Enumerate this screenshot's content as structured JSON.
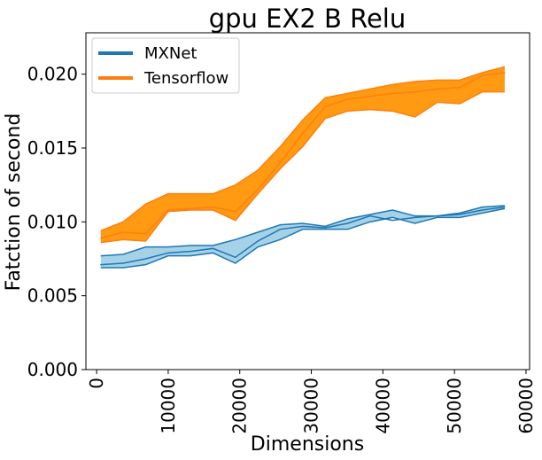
{
  "chart_data": {
    "type": "line",
    "title": "gpu EX2 B Relu",
    "xlabel": "Dimensions",
    "ylabel": "Fatction of second",
    "xlim": [
      -1500,
      60500
    ],
    "ylim": [
      0,
      0.0228
    ],
    "xticks": [
      0,
      10000,
      20000,
      30000,
      40000,
      50000,
      60000
    ],
    "xtick_labels": [
      "0",
      "10000",
      "20000",
      "30000",
      "40000",
      "50000",
      "60000"
    ],
    "yticks": [
      0.0,
      0.005,
      0.01,
      0.015,
      0.02
    ],
    "ytick_labels": [
      "0.000",
      "0.005",
      "0.010",
      "0.015",
      "0.020"
    ],
    "grid": false,
    "legend_position": "top-left",
    "x": [
      576,
      3712,
      6848,
      9984,
      13120,
      16256,
      19392,
      22528,
      25664,
      28800,
      31936,
      35072,
      38208,
      41344,
      44480,
      47616,
      50752,
      53888,
      57024
    ],
    "series": [
      {
        "name": "MXNet",
        "color": "#1f77b4",
        "band_color": "#a6d2e8",
        "mean": [
          0.0071,
          0.0072,
          0.0075,
          0.0079,
          0.008,
          0.0082,
          0.0076,
          0.0087,
          0.0095,
          0.0097,
          0.0096,
          0.0099,
          0.0104,
          0.0101,
          0.0103,
          0.0104,
          0.0105,
          0.0108,
          0.011
        ],
        "lower": [
          0.0069,
          0.0069,
          0.0071,
          0.0077,
          0.0077,
          0.0079,
          0.0072,
          0.0083,
          0.0088,
          0.0095,
          0.0095,
          0.0095,
          0.01,
          0.0103,
          0.0099,
          0.0103,
          0.0103,
          0.0106,
          0.0109
        ],
        "upper": [
          0.0077,
          0.0078,
          0.0083,
          0.0083,
          0.0084,
          0.0084,
          0.0088,
          0.0093,
          0.0098,
          0.0099,
          0.0097,
          0.0102,
          0.0105,
          0.0108,
          0.0104,
          0.0104,
          0.0106,
          0.011,
          0.0111
        ]
      },
      {
        "name": "Tensorflow",
        "color": "#ff7f0e",
        "band_color": "#ff9a12",
        "mean": [
          0.0089,
          0.0093,
          0.0092,
          0.0108,
          0.0109,
          0.011,
          0.0107,
          0.0122,
          0.014,
          0.016,
          0.0178,
          0.0183,
          0.0185,
          0.0187,
          0.0188,
          0.019,
          0.0191,
          0.0199,
          0.0201
        ],
        "lower": [
          0.0086,
          0.0088,
          0.0087,
          0.0107,
          0.0108,
          0.0108,
          0.0101,
          0.0119,
          0.0136,
          0.0151,
          0.017,
          0.0175,
          0.0176,
          0.0175,
          0.0171,
          0.0181,
          0.018,
          0.0188,
          0.0188
        ],
        "upper": [
          0.0094,
          0.01,
          0.0112,
          0.0119,
          0.0119,
          0.0119,
          0.0125,
          0.0135,
          0.0151,
          0.0169,
          0.0184,
          0.0187,
          0.019,
          0.0193,
          0.0195,
          0.0196,
          0.0196,
          0.0201,
          0.0205
        ]
      }
    ]
  }
}
